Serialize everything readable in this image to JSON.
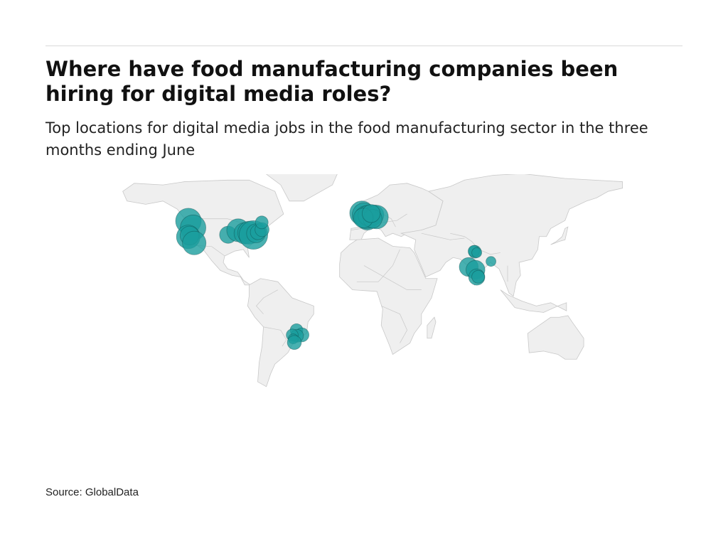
{
  "header": {
    "title": "Where have food manufacturing companies been hiring for digital media roles?",
    "subtitle": "Top locations for digital media jobs in the food manufacturing sector in the three months ending June"
  },
  "footer": {
    "source": "Source: GlobalData"
  },
  "colors": {
    "bubble": "#1a9e9e",
    "land": "#efefef",
    "border": "#c8c8c8"
  },
  "map": {
    "projection": "world",
    "bubbles": [
      {
        "region": "us-west",
        "lon": -122.3,
        "lat": 47.6,
        "size": 1.0
      },
      {
        "region": "us-west",
        "lon": -119.0,
        "lat": 43.5,
        "size": 1.0
      },
      {
        "region": "us-west",
        "lon": -122.4,
        "lat": 37.8,
        "size": 0.85
      },
      {
        "region": "us-west",
        "lon": -121.5,
        "lat": 38.6,
        "size": 0.55
      },
      {
        "region": "us-west",
        "lon": -118.2,
        "lat": 34.0,
        "size": 0.85
      },
      {
        "region": "us-central",
        "lon": -94.6,
        "lat": 39.1,
        "size": 0.45
      },
      {
        "region": "us-east",
        "lon": -87.6,
        "lat": 41.9,
        "size": 0.8
      },
      {
        "region": "us-east",
        "lon": -83.0,
        "lat": 40.0,
        "size": 0.7
      },
      {
        "region": "us-east",
        "lon": -80.0,
        "lat": 40.4,
        "size": 0.8
      },
      {
        "region": "us-east",
        "lon": -77.0,
        "lat": 39.0,
        "size": 1.25
      },
      {
        "region": "us-east",
        "lon": -75.2,
        "lat": 40.0,
        "size": 0.55
      },
      {
        "region": "us-east",
        "lon": -73.9,
        "lat": 40.7,
        "size": 0.35
      },
      {
        "region": "us-east",
        "lon": -71.0,
        "lat": 42.3,
        "size": 0.3
      },
      {
        "region": "canada",
        "lon": -71.2,
        "lat": 46.8,
        "size": 0.25
      },
      {
        "region": "europe",
        "lon": -1.5,
        "lat": 52.5,
        "size": 0.9
      },
      {
        "region": "europe",
        "lon": 0.0,
        "lat": 51.5,
        "size": 0.85
      },
      {
        "region": "europe",
        "lon": 2.3,
        "lat": 48.9,
        "size": 0.75
      },
      {
        "region": "europe",
        "lon": 4.5,
        "lat": 50.8,
        "size": 0.7
      },
      {
        "region": "europe",
        "lon": 1.5,
        "lat": 50.0,
        "size": 0.8
      },
      {
        "region": "europe",
        "lon": 3.0,
        "lat": 51.0,
        "size": 0.65
      },
      {
        "region": "europe",
        "lon": 7.0,
        "lat": 51.4,
        "size": 0.6
      },
      {
        "region": "europe",
        "lon": 8.7,
        "lat": 50.1,
        "size": 0.85
      },
      {
        "region": "europe",
        "lon": 6.0,
        "lat": 49.0,
        "size": 0.55
      },
      {
        "region": "europe",
        "lon": -0.5,
        "lat": 49.5,
        "size": 0.6
      },
      {
        "region": "europe",
        "lon": 5.0,
        "lat": 52.3,
        "size": 0.5
      },
      {
        "region": "india",
        "lon": 77.2,
        "lat": 28.6,
        "size": 0.25
      },
      {
        "region": "india",
        "lon": 76.5,
        "lat": 29.0,
        "size": 0.2
      },
      {
        "region": "india",
        "lon": 78.5,
        "lat": 28.0,
        "size": 0.15
      },
      {
        "region": "india",
        "lon": 88.4,
        "lat": 22.6,
        "size": 0.15
      },
      {
        "region": "india",
        "lon": 72.9,
        "lat": 19.1,
        "size": 0.55
      },
      {
        "region": "india",
        "lon": 77.6,
        "lat": 17.4,
        "size": 0.55
      },
      {
        "region": "india",
        "lon": 78.5,
        "lat": 12.9,
        "size": 0.4
      },
      {
        "region": "india",
        "lon": 79.5,
        "lat": 13.1,
        "size": 0.25
      },
      {
        "region": "brazil",
        "lon": -47.0,
        "lat": -20.0,
        "size": 0.25
      },
      {
        "region": "brazil",
        "lon": -43.2,
        "lat": -22.9,
        "size": 0.3
      },
      {
        "region": "brazil",
        "lon": -46.6,
        "lat": -23.5,
        "size": 0.25
      },
      {
        "region": "brazil",
        "lon": -50.0,
        "lat": -23.0,
        "size": 0.22
      },
      {
        "region": "brazil",
        "lon": -49.3,
        "lat": -25.4,
        "size": 0.15
      },
      {
        "region": "brazil",
        "lon": -48.5,
        "lat": -27.6,
        "size": 0.3
      }
    ]
  }
}
